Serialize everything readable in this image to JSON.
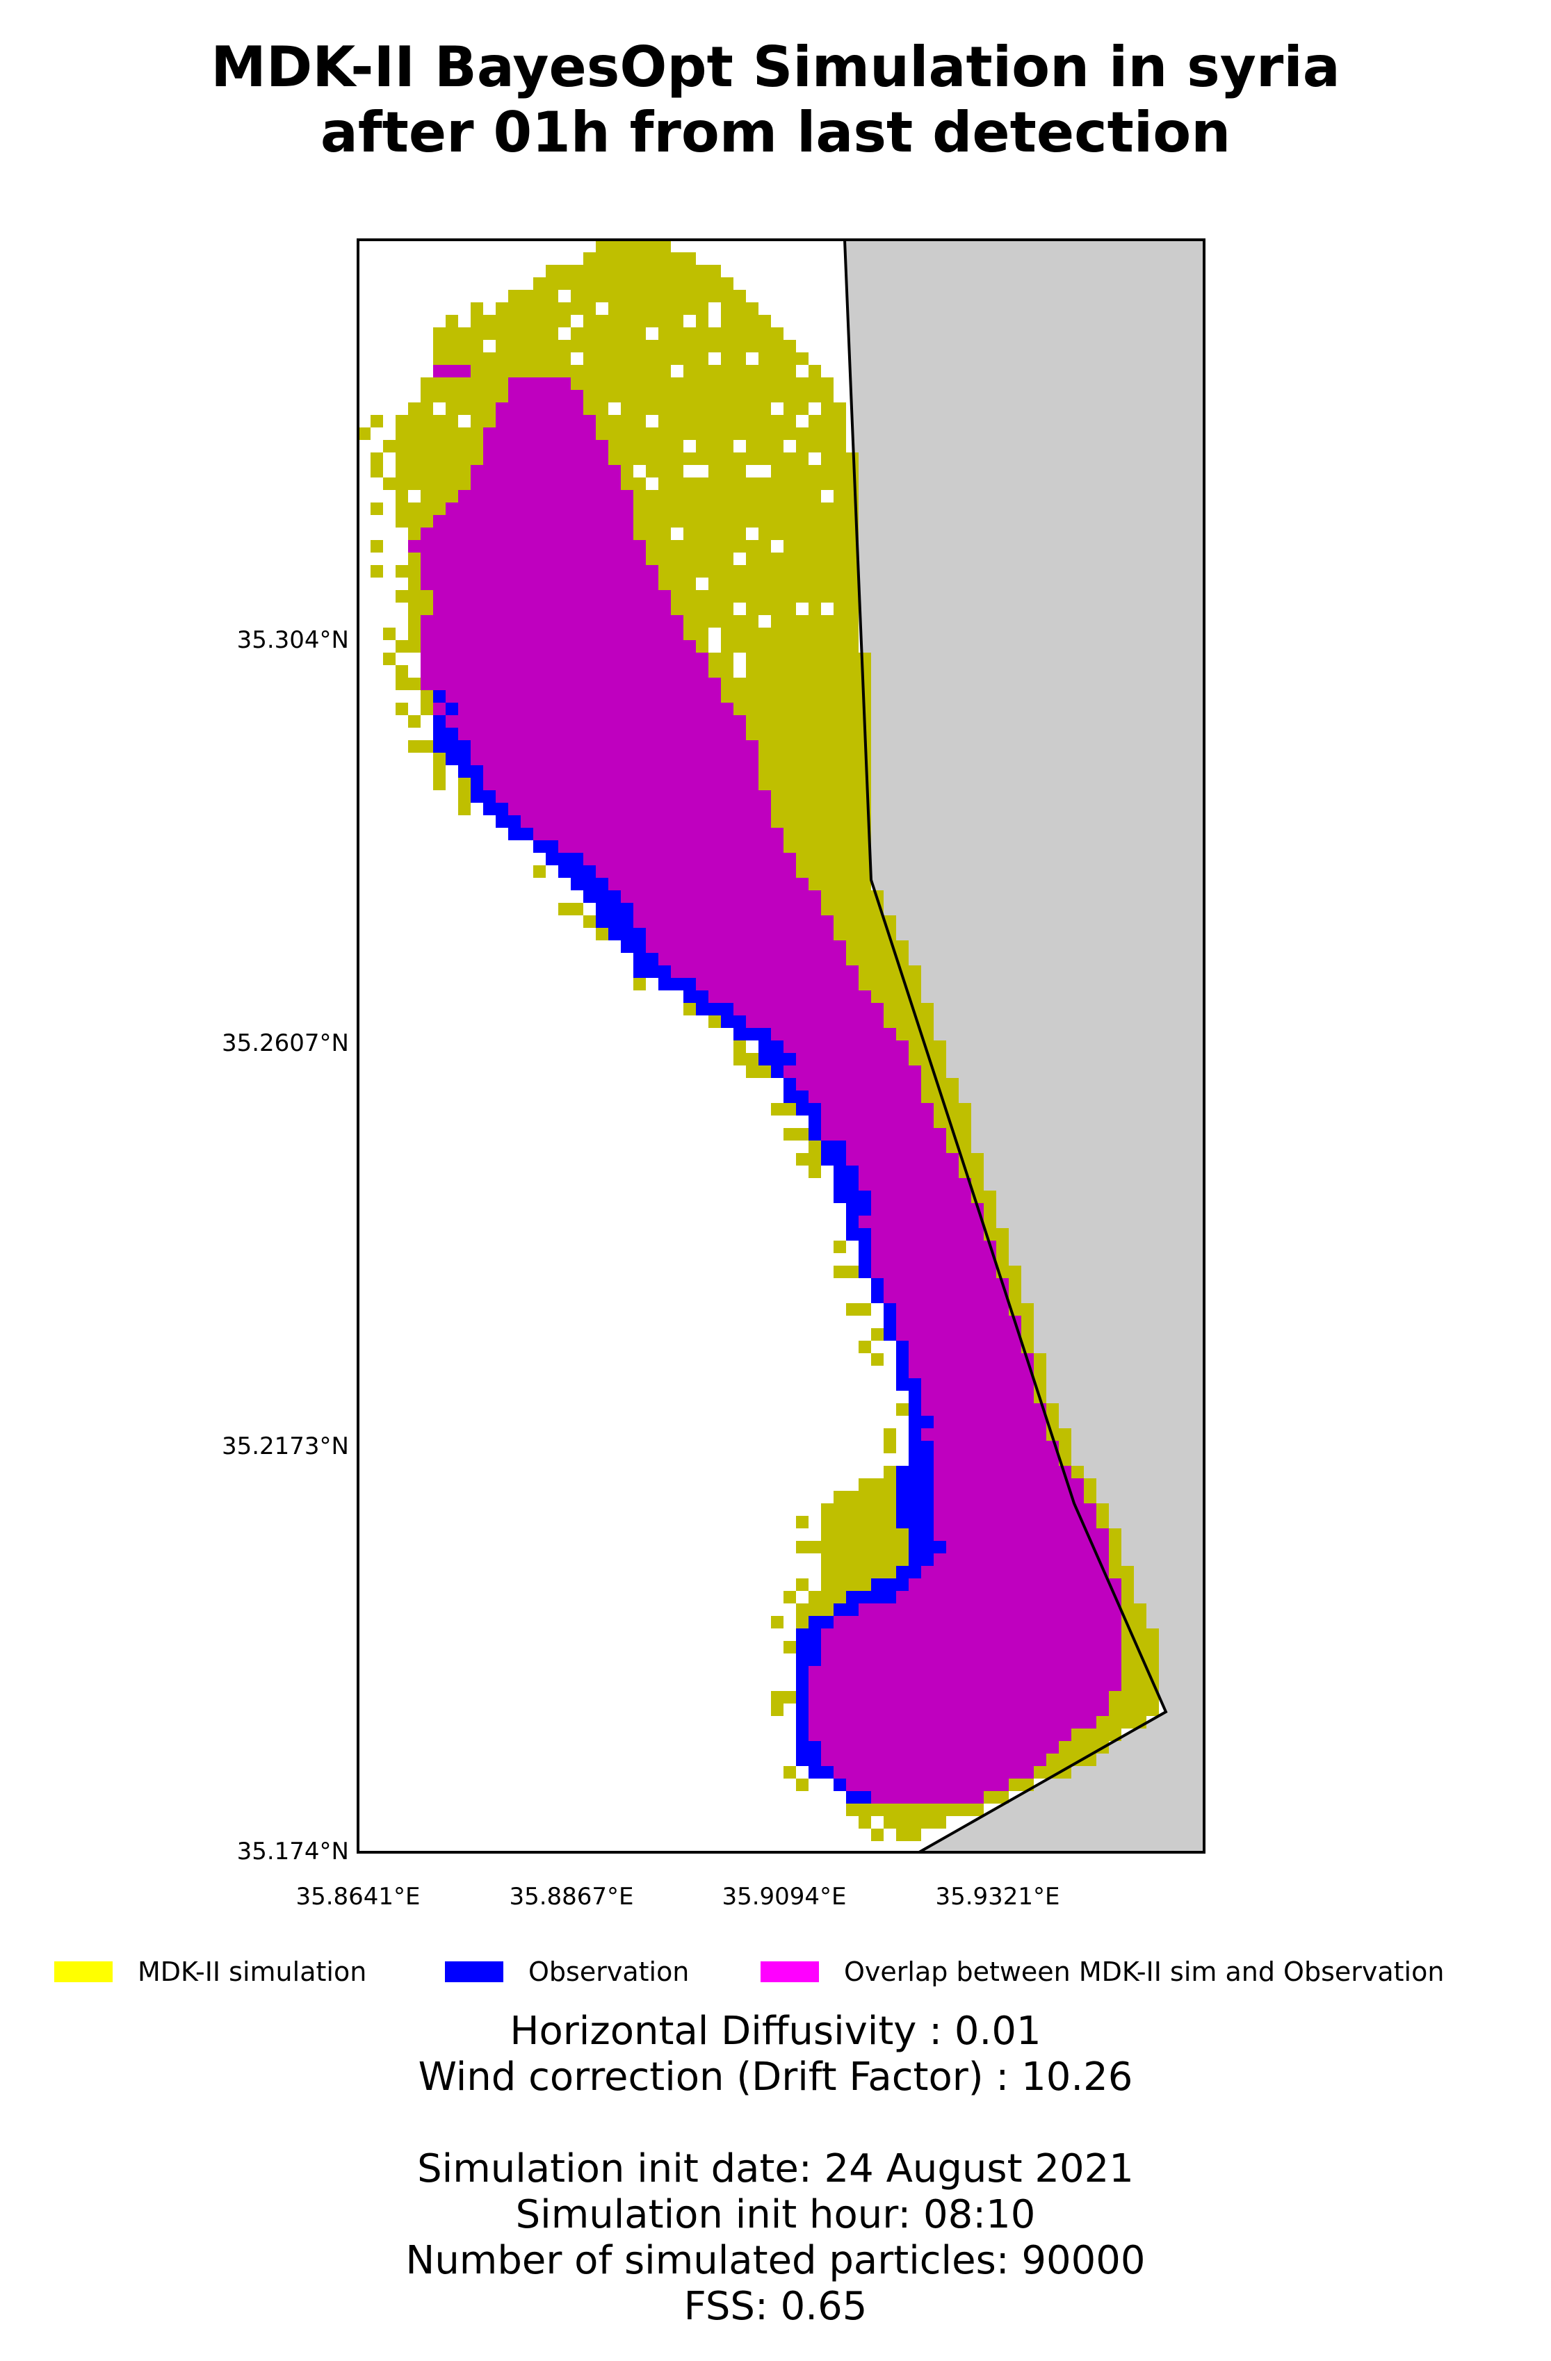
{
  "title": {
    "line1": "MDK-II BayesOpt Simulation in syria",
    "line2": "after 01h from last detection"
  },
  "map": {
    "lat_ticks": [
      "35.304°N",
      "35.2607°N",
      "35.2173°N",
      "35.174°N"
    ],
    "lon_ticks": [
      "35.8641°E",
      "35.8867°E",
      "35.9094°E",
      "35.9321°E"
    ],
    "colors": {
      "simulation": "#bfbf00",
      "observation": "#0000ff",
      "overlap": "#bf00bf",
      "land": "#cccccc"
    }
  },
  "legend": {
    "items": [
      {
        "label": "MDK-II simulation",
        "color": "#ffff00"
      },
      {
        "label": "Observation",
        "color": "#0000ff"
      },
      {
        "label": "Overlap between MDK-II sim and Observation",
        "color": "#ff00ff"
      }
    ]
  },
  "info": {
    "diffusivity": "Horizontal Diffusivity : 0.01",
    "wind": "Wind correction (Drift Factor) : 10.26",
    "init_date": "Simulation init date: 24 August 2021",
    "init_hour": "Simulation init hour: 08:10",
    "particles": "Number of simulated particles: 90000",
    "fss": "FSS: 0.65"
  }
}
